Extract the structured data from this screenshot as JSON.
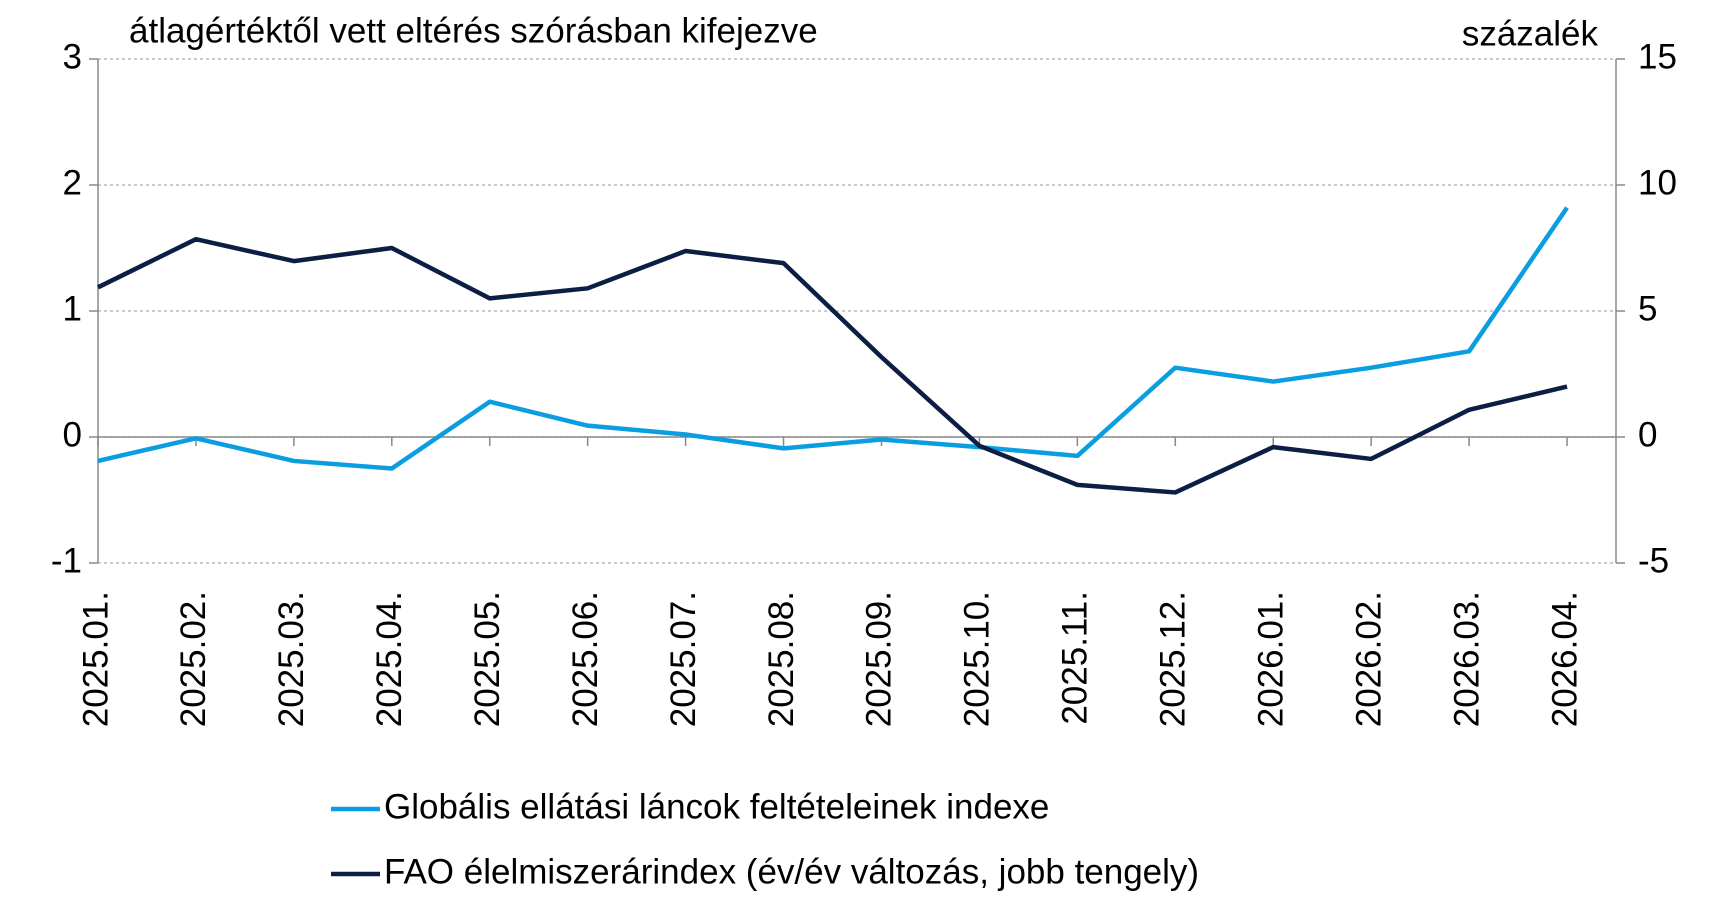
{
  "chart_data": {
    "type": "line",
    "y_label": "átlagértéktől vett eltérés szórásban kifejezve",
    "y2_label": "százalék",
    "categories": [
      "2025.01.",
      "2025.02.",
      "2025.03.",
      "2025.04.",
      "2025.05.",
      "2025.06.",
      "2025.07.",
      "2025.08.",
      "2025.09.",
      "2025.10.",
      "2025.11.",
      "2025.12.",
      "2026.01.",
      "2026.02.",
      "2026.03.",
      "2026.04."
    ],
    "series": [
      {
        "name": "Globális ellátási láncok feltételeinek indexe",
        "color": "#0a9ee0",
        "values": [
          -0.19,
          -0.01,
          -0.19,
          -0.25,
          0.28,
          0.09,
          0.02,
          -0.09,
          -0.02,
          -0.08,
          -0.15,
          0.55,
          0.44,
          0.55,
          0.68,
          1.82
        ]
      },
      {
        "name": "FAO élelmiszerárindex (év/év változás, jobb tengely)",
        "color": "#0c1e44",
        "axis": "y2",
        "values": [
          5.94,
          7.85,
          6.98,
          7.5,
          5.5,
          5.9,
          7.38,
          6.9,
          3.17,
          -0.35,
          -1.9,
          -2.2,
          -0.4,
          -0.87,
          1.08,
          2.0
        ]
      }
    ],
    "ylim": [
      -1,
      3
    ],
    "yticks": [
      -1,
      0,
      1,
      2,
      3
    ],
    "y2lim": [
      -5,
      15
    ],
    "y2ticks": [
      -5,
      0,
      5,
      10,
      15
    ],
    "grid": true
  }
}
